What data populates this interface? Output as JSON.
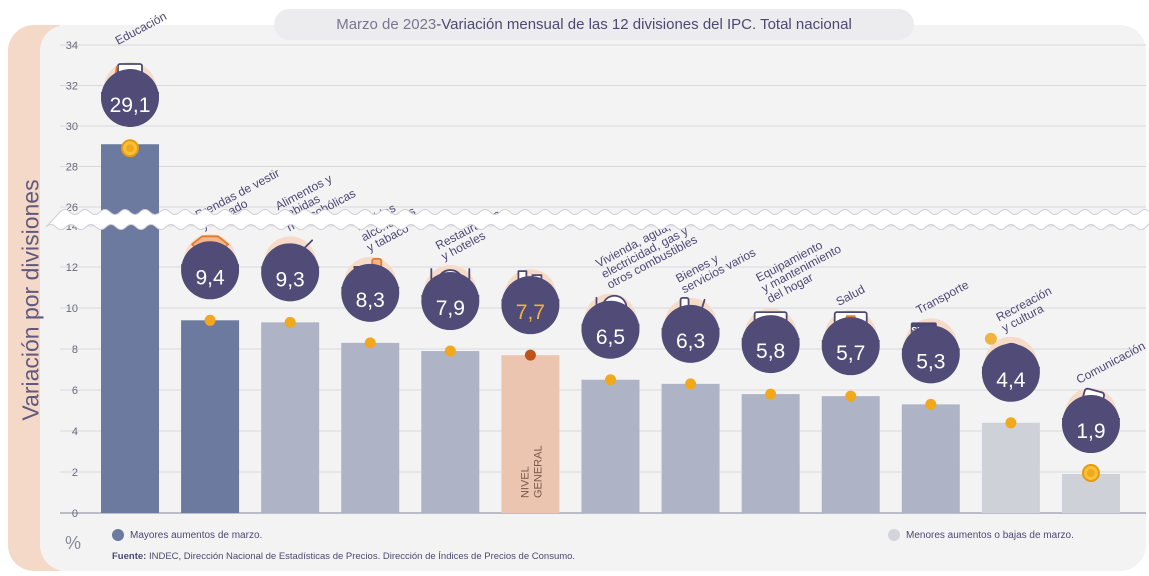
{
  "title": {
    "date": "Marzo de 2023",
    "separator": " - ",
    "text": "Variación mensual de las 12 divisiones del IPC. Total nacional"
  },
  "y_axis_label": "Variación por divisiones",
  "unit_symbol": "%",
  "legend": {
    "higher": "Mayores aumentos de marzo.",
    "lower": "Menores aumentos o bajas de marzo."
  },
  "source": {
    "label": "Fuente:",
    "text": " INDEC, Dirección Nacional de Estadísticas de Precios. Dirección de Índices de Precios de Consumo."
  },
  "colors": {
    "higher": "#6b7a9e",
    "middle": "#aeb4c5",
    "lower": "#cfd1d8",
    "general": "#ebc5b0",
    "circle": "#504b77",
    "dot": "#f1a81c",
    "dot_general": "#c0531a",
    "value_general": "#f2b23e"
  },
  "chart_data": {
    "type": "bar",
    "broken_axis": true,
    "y_ticks_lower": [
      0,
      2,
      4,
      6,
      8,
      10,
      12,
      14
    ],
    "y_ticks_upper": [
      26,
      28,
      30,
      32,
      34
    ],
    "categories": [
      {
        "name": "Educación",
        "lines": [
          "Educación"
        ],
        "value": 29.1,
        "label": "29,1",
        "group": "higher",
        "icon": "notebook-icon"
      },
      {
        "name": "Prendas de vestir y calzado",
        "lines": [
          "Prendas de vestir",
          "y calzado"
        ],
        "value": 9.4,
        "label": "9,4",
        "group": "higher",
        "icon": "tshirt-icon"
      },
      {
        "name": "Alimentos y bebidas no alcohólicas",
        "lines": [
          "Alimentos y",
          "bebidas",
          "no alcohólicas"
        ],
        "value": 9.3,
        "label": "9,3",
        "group": "middle",
        "icon": "chicken-icon"
      },
      {
        "name": "Bebidas alcohólicas y tabaco",
        "lines": [
          "Bebidas",
          "alcohólicas",
          "y tabaco"
        ],
        "value": 8.3,
        "label": "8,3",
        "group": "middle",
        "icon": "wine-icon"
      },
      {
        "name": "Restaurantes y hoteles",
        "lines": [
          "Restaurantes",
          "y hoteles"
        ],
        "value": 7.9,
        "label": "7,9",
        "group": "middle",
        "icon": "plate-icon"
      },
      {
        "name": "NIVEL GENERAL",
        "lines": [],
        "value": 7.7,
        "label": "7,7",
        "group": "general",
        "icon": "basket-icon",
        "bar_text": [
          "NIVEL",
          "GENERAL"
        ]
      },
      {
        "name": "Vivienda, agua, electricidad, gas y otros combustibles",
        "lines": [
          "Vivienda, agua,",
          "electricidad, gas y",
          "otros combustibles"
        ],
        "value": 6.5,
        "label": "6,5",
        "group": "middle",
        "icon": "bulb-icon"
      },
      {
        "name": "Bienes y servicios varios",
        "lines": [
          "Bienes y",
          "servicios varios"
        ],
        "value": 6.3,
        "label": "6,3",
        "group": "middle",
        "icon": "comb-icon"
      },
      {
        "name": "Equipamiento y mantenimiento del hogar",
        "lines": [
          "Equipamiento",
          "y mantenimiento",
          "del hogar"
        ],
        "value": 5.8,
        "label": "5,8",
        "group": "middle",
        "icon": "washer-icon"
      },
      {
        "name": "Salud",
        "lines": [
          "Salud"
        ],
        "value": 5.7,
        "label": "5,7",
        "group": "middle",
        "icon": "cross-icon"
      },
      {
        "name": "Transporte",
        "lines": [
          "Transporte"
        ],
        "value": 5.3,
        "label": "5,3",
        "group": "middle",
        "icon": "card-icon",
        "icon_text": "SUBE"
      },
      {
        "name": "Recreación y cultura",
        "lines": [
          "Recreación",
          "y cultura"
        ],
        "value": 4.4,
        "label": "4,4",
        "group": "lower",
        "icon": "umbrella-icon"
      },
      {
        "name": "Comunicación",
        "lines": [
          "Comunicación"
        ],
        "value": 1.9,
        "label": "1,9",
        "group": "lower",
        "icon": "phone-icon"
      }
    ]
  }
}
